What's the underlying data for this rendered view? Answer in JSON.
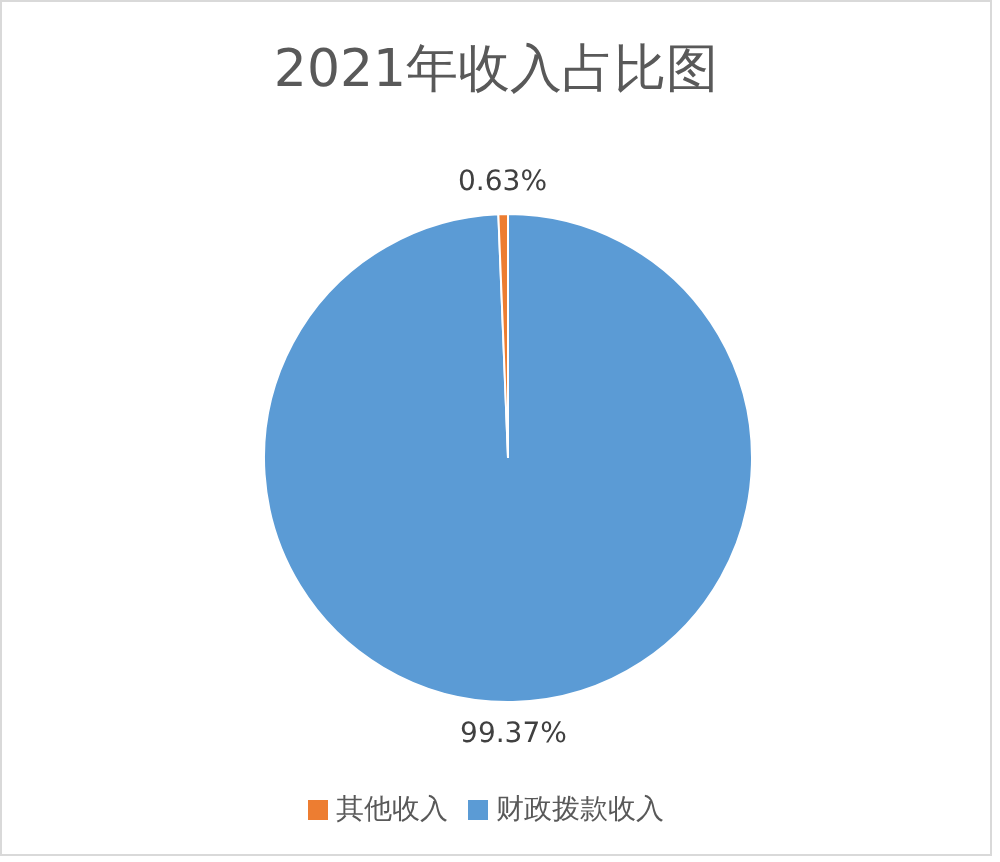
{
  "chart_data": {
    "type": "pie",
    "title": "2021年收入占比图",
    "categories": [
      "财政拨款收入",
      "其他收入"
    ],
    "values": [
      99.37,
      0.63
    ],
    "colors": [
      "#5b9bd5",
      "#ed7d31"
    ],
    "value_labels": [
      "99.37%",
      "0.63%"
    ],
    "legend": "bottom"
  }
}
